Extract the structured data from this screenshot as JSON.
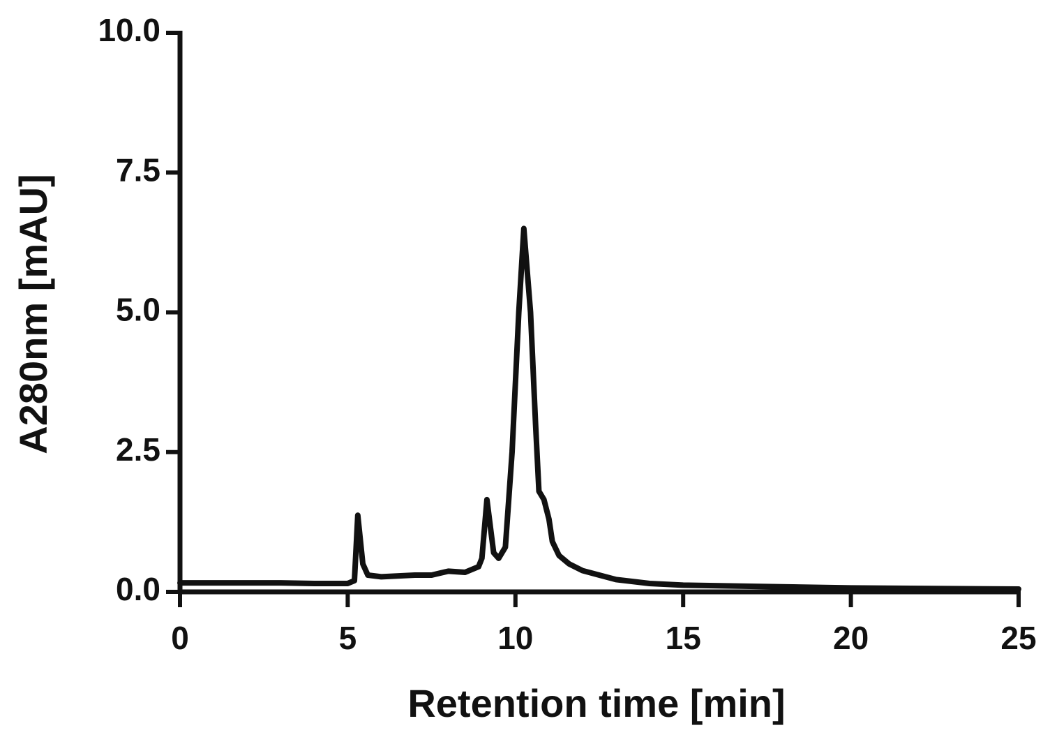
{
  "chart_data": {
    "type": "line",
    "x_label": "Retention time [min]",
    "y_label": "A280nm [mAU]",
    "x": [
      0,
      1,
      2,
      3,
      4,
      5,
      5.2,
      5.3,
      5.45,
      5.6,
      6,
      7,
      7.5,
      8,
      8.5,
      8.9,
      9.0,
      9.15,
      9.35,
      9.5,
      9.7,
      9.9,
      10.1,
      10.25,
      10.45,
      10.6,
      10.7,
      10.85,
      11.0,
      11.1,
      11.3,
      11.6,
      12,
      12.5,
      13,
      14,
      15,
      17,
      20,
      25
    ],
    "values": [
      0.16,
      0.16,
      0.16,
      0.16,
      0.15,
      0.15,
      0.2,
      1.37,
      0.5,
      0.3,
      0.27,
      0.3,
      0.3,
      0.37,
      0.35,
      0.45,
      0.6,
      1.65,
      0.7,
      0.6,
      0.8,
      2.5,
      5.0,
      6.5,
      5.0,
      3.0,
      1.8,
      1.65,
      1.3,
      0.9,
      0.65,
      0.5,
      0.38,
      0.3,
      0.22,
      0.15,
      0.12,
      0.1,
      0.07,
      0.05
    ],
    "color": "#111111",
    "xlim": [
      0,
      25
    ],
    "xticks": [
      0,
      5,
      10,
      15,
      20,
      25
    ],
    "ylim": [
      0,
      10
    ],
    "yticks": [
      {
        "value": 0,
        "label": "0.0"
      },
      2.5,
      {
        "value": 5,
        "label": "5.0"
      },
      7.5,
      {
        "value": 10,
        "label": "10.0"
      }
    ],
    "grid": false
  }
}
